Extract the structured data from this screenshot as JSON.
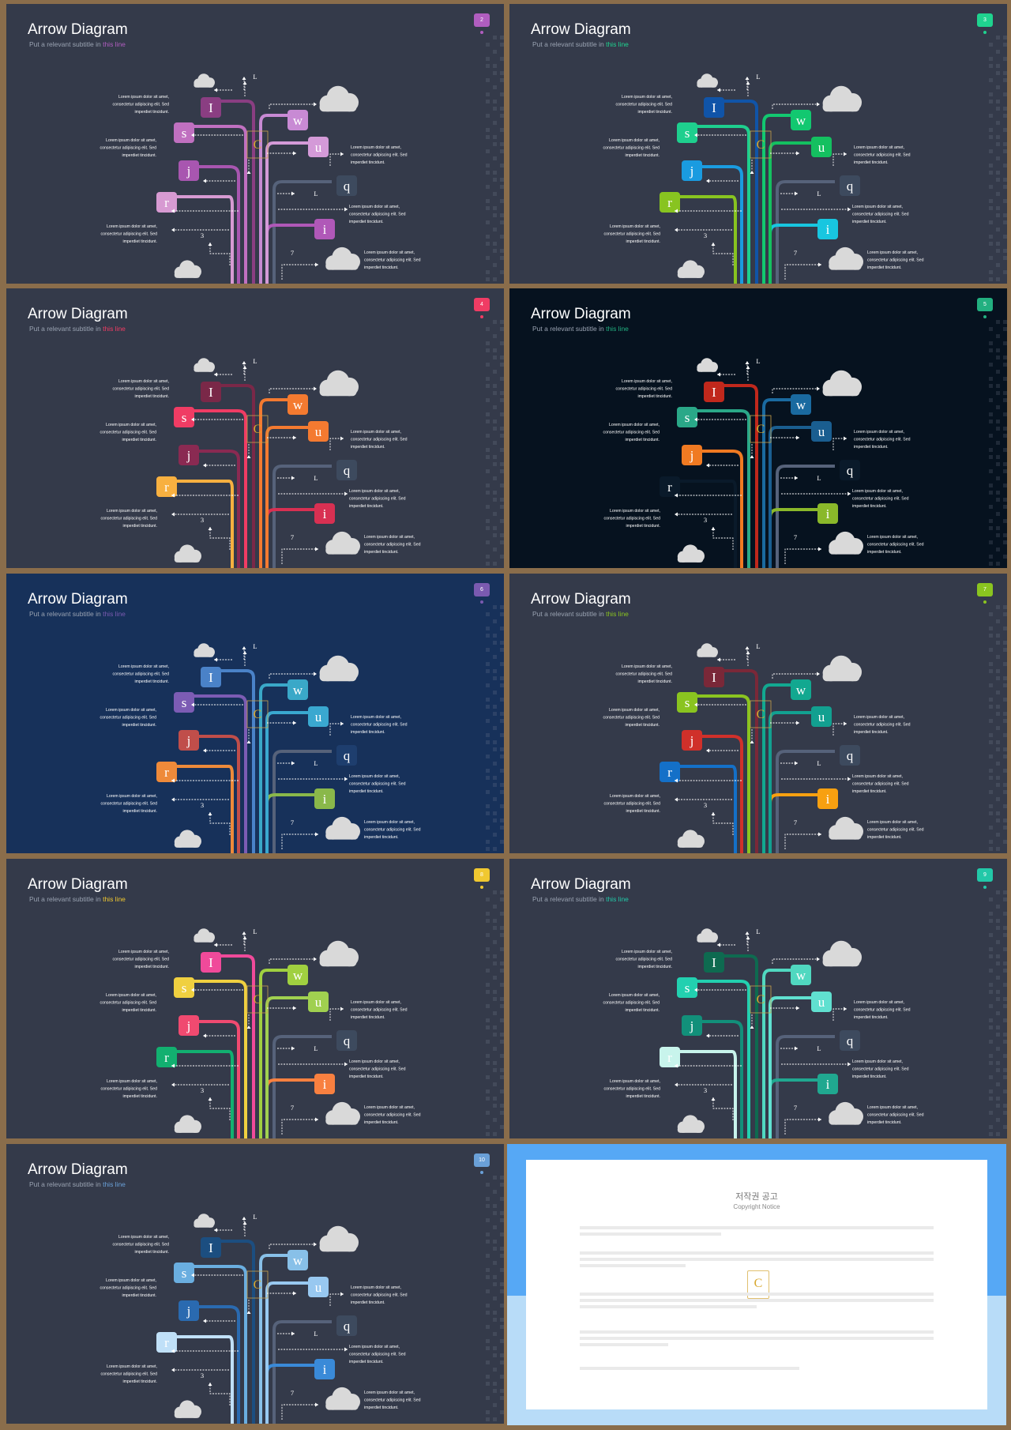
{
  "slides": [
    {
      "num": "2",
      "title": "Arrow Diagram",
      "subtitle_pre": "Put a relevant subtitle in ",
      "subtitle_hl": "this line",
      "bg": "#343a4a",
      "accent": "#b05dbf",
      "colors": {
        "I": "#8a3e82",
        "s": "#c070c0",
        "j": "#a856b0",
        "r": "#d79ad2",
        "w": "#c88ad4",
        "u": "#d49ad8",
        "q": "#3d4a5e",
        "i": "#b058b8"
      }
    },
    {
      "num": "3",
      "title": "Arrow Diagram",
      "subtitle_pre": "Put a relevant subtitle in ",
      "subtitle_hl": "this line",
      "bg": "#343a4a",
      "accent": "#1fd38f",
      "colors": {
        "I": "#1054a8",
        "s": "#1ecf8e",
        "j": "#1a9be0",
        "r": "#88c420",
        "w": "#12c870",
        "u": "#14c060",
        "q": "#3d4a5e",
        "i": "#18c6e0"
      }
    },
    {
      "num": "4",
      "title": "Arrow Diagram",
      "subtitle_pre": "Put a relevant subtitle in ",
      "subtitle_hl": "this line",
      "bg": "#343a4a",
      "accent": "#f03c64",
      "colors": {
        "I": "#7a2848",
        "s": "#f03c64",
        "j": "#8a2a52",
        "r": "#f8b040",
        "w": "#f47a30",
        "u": "#f47a30",
        "q": "#3d4a5e",
        "i": "#d83052"
      }
    },
    {
      "num": "5",
      "title": "Arrow Diagram",
      "subtitle_pre": "Put a relevant subtitle in ",
      "subtitle_hl": "this line",
      "bg": "#06121f",
      "accent": "#22b080",
      "colors": {
        "I": "#c0281c",
        "s": "#2aa888",
        "j": "#f07a22",
        "r": "#0a1a2a",
        "w": "#1a6aa0",
        "u": "#1a5e90",
        "q": "#0a1a2a",
        "i": "#8ab82a"
      }
    },
    {
      "num": "6",
      "title": "Arrow Diagram",
      "subtitle_pre": "Put a relevant subtitle in ",
      "subtitle_hl": "this line",
      "bg": "#17315a",
      "accent": "#7a5ab0",
      "colors": {
        "I": "#4a82c8",
        "s": "#7c5cb4",
        "j": "#c04e4a",
        "r": "#ee8a3a",
        "w": "#3aa8c8",
        "u": "#3aa8d0",
        "q": "#1e3e6e",
        "i": "#8ab84a"
      }
    },
    {
      "num": "7",
      "title": "Arrow Diagram",
      "subtitle_pre": "Put a relevant subtitle in ",
      "subtitle_hl": "this line",
      "bg": "#343a4a",
      "accent": "#8ac420",
      "colors": {
        "I": "#7a2838",
        "s": "#8ac420",
        "j": "#d0302a",
        "r": "#1470c8",
        "w": "#12a890",
        "u": "#12a090",
        "q": "#3d4a5e",
        "i": "#f8a010"
      }
    },
    {
      "num": "8",
      "title": "Arrow Diagram",
      "subtitle_pre": "Put a relevant subtitle in ",
      "subtitle_hl": "this line",
      "bg": "#343a4a",
      "accent": "#f0c830",
      "colors": {
        "I": "#f04a9a",
        "s": "#f0d040",
        "j": "#f04a70",
        "r": "#12b070",
        "w": "#a0d040",
        "u": "#a0d050",
        "q": "#3d4a5e",
        "i": "#f88040"
      }
    },
    {
      "num": "9",
      "title": "Arrow Diagram",
      "subtitle_pre": "Put a relevant subtitle in ",
      "subtitle_hl": "this line",
      "bg": "#343a4a",
      "accent": "#22c8a8",
      "colors": {
        "I": "#0e6a50",
        "s": "#22d0b0",
        "j": "#12907a",
        "r": "#c8f4ec",
        "w": "#50d8c0",
        "u": "#60e0d0",
        "q": "#3d4a5e",
        "i": "#20a890"
      }
    },
    {
      "num": "10",
      "title": "Arrow Diagram",
      "subtitle_pre": "Put a relevant subtitle in ",
      "subtitle_hl": "this line",
      "bg": "#343a4a",
      "accent": "#6aa0d8",
      "colors": {
        "I": "#1c4e80",
        "s": "#6aaee0",
        "j": "#2a6ab0",
        "r": "#c0e0f8",
        "w": "#88c0e8",
        "u": "#98c8f0",
        "q": "#3d4a5e",
        "i": "#3a8ad8"
      }
    }
  ],
  "diagram": {
    "letters": {
      "I": "I",
      "s": "s",
      "j": "j",
      "r": "r",
      "w": "w",
      "u": "u",
      "q": "q",
      "i": "i"
    },
    "labels": {
      "top": "L",
      "mid": "L",
      "n3": "3",
      "n7": "7"
    },
    "lorem1": "Lorem ipsum dolor sit amet,",
    "lorem2": "consectetur adipiscing elit. Sed",
    "lorem3": "imperdiet tincidunt."
  },
  "copyright": {
    "title": "저작권 공고",
    "subtitle": "Copyright Notice"
  }
}
